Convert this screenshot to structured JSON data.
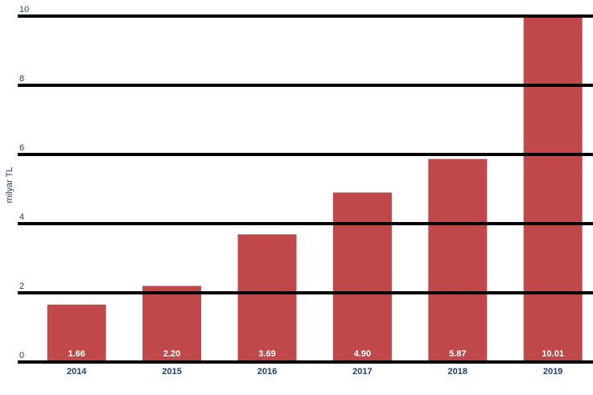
{
  "chart_data": {
    "type": "bar",
    "y_label": "milyar TL",
    "categories": [
      "2014",
      "2015",
      "2016",
      "2017",
      "2018",
      "2019"
    ],
    "values": [
      1.66,
      2.2,
      3.69,
      4.9,
      5.87,
      10.01
    ],
    "value_labels": [
      "1.66",
      "2.20",
      "3.69",
      "4.90",
      "5.87",
      "10.01"
    ],
    "color": "#c0484a",
    "ylim": [
      0,
      10
    ],
    "yticks": [
      0,
      2,
      4,
      6,
      8,
      10
    ],
    "grid": true
  }
}
